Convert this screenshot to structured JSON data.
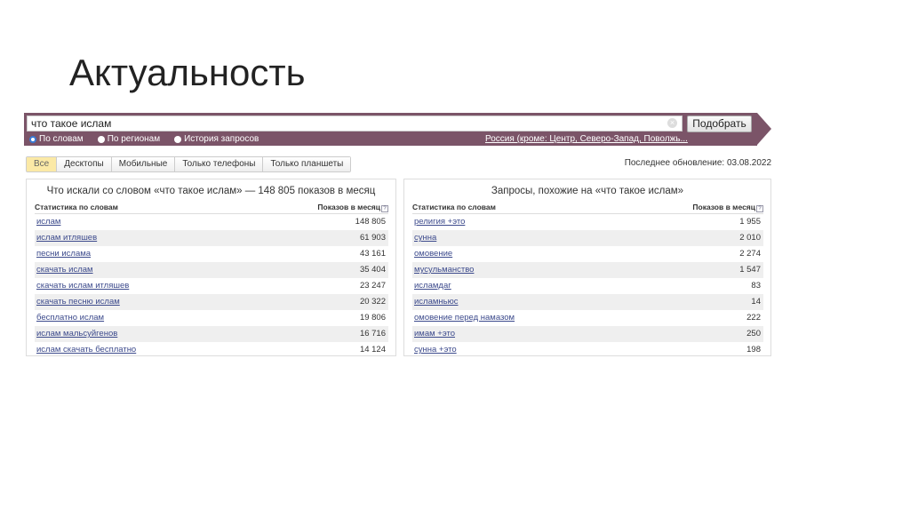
{
  "slide_title": "Актуальность",
  "search": {
    "query": "что такое ислам",
    "button": "Подобрать",
    "region": "Россия (кроме: Центр, Северо-Запад, Поволжь...",
    "modes": [
      {
        "label": "По словам",
        "selected": true
      },
      {
        "label": "По регионам",
        "selected": false
      },
      {
        "label": "История запросов",
        "selected": false
      }
    ]
  },
  "tabs": [
    {
      "label": "Все",
      "active": true
    },
    {
      "label": "Десктопы"
    },
    {
      "label": "Мобильные"
    },
    {
      "label": "Только телефоны"
    },
    {
      "label": "Только планшеты"
    }
  ],
  "last_update": "Последнее обновление: 03.08.2022",
  "left": {
    "title": "Что искали со словом «что такое ислам» — 148 805 показов в месяц",
    "col1": "Статистика по словам",
    "col2": "Показов в месяц",
    "rows": [
      [
        "ислам",
        "148 805"
      ],
      [
        "ислам итляшев",
        "61 903"
      ],
      [
        "песни ислама",
        "43 161"
      ],
      [
        "скачать ислам",
        "35 404"
      ],
      [
        "скачать ислам итляшев",
        "23 247"
      ],
      [
        "скачать песню ислам",
        "20 322"
      ],
      [
        "бесплатно ислам",
        "19 806"
      ],
      [
        "ислам мальсуйгенов",
        "16 716"
      ],
      [
        "ислам скачать бесплатно",
        "14 124"
      ]
    ]
  },
  "right": {
    "title": "Запросы, похожие на «что такое ислам»",
    "col1": "Статистика по словам",
    "col2": "Показов в месяц",
    "rows": [
      [
        "религия +это",
        "1 955"
      ],
      [
        "сунна",
        "2 010"
      ],
      [
        "омовение",
        "2 274"
      ],
      [
        "мусульманство",
        "1 547"
      ],
      [
        "исламдаг",
        "83"
      ],
      [
        "исламньюс",
        "14"
      ],
      [
        "омовение перед намазом",
        "222"
      ],
      [
        "имам +это",
        "250"
      ],
      [
        "сунна +это",
        "198"
      ]
    ]
  }
}
